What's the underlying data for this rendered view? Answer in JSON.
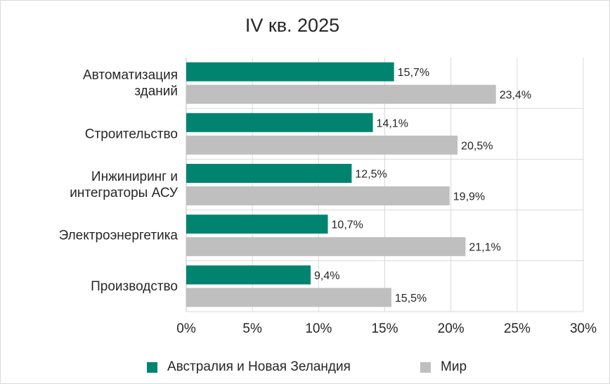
{
  "chart_data": {
    "type": "bar",
    "orientation": "horizontal",
    "title": "IV кв. 2025",
    "categories": [
      [
        "Автоматизация",
        "зданий"
      ],
      [
        "Строительство"
      ],
      [
        "Инжиниринг и",
        "интеграторы АСУ"
      ],
      [
        "Электроэнергетика"
      ],
      [
        "Производство"
      ]
    ],
    "series": [
      {
        "name": "Австралия и Новая Зеландия",
        "color": "#008470",
        "values": [
          15.7,
          14.1,
          12.5,
          10.7,
          9.4
        ],
        "labels": [
          "15,7%",
          "14,1%",
          "12,5%",
          "10,7%",
          "9,4%"
        ]
      },
      {
        "name": "Мир",
        "color": "#bfbfbf",
        "values": [
          23.4,
          20.5,
          19.9,
          21.1,
          15.5
        ],
        "labels": [
          "23,4%",
          "20,5%",
          "19,9%",
          "21,1%",
          "15,5%"
        ]
      }
    ],
    "xlim": [
      0,
      30
    ],
    "xticks": [
      0,
      5,
      10,
      15,
      20,
      25,
      30
    ],
    "xtick_labels": [
      "0%",
      "5%",
      "10%",
      "15%",
      "20%",
      "25%",
      "30%"
    ],
    "grid": true,
    "legend_position": "bottom"
  }
}
